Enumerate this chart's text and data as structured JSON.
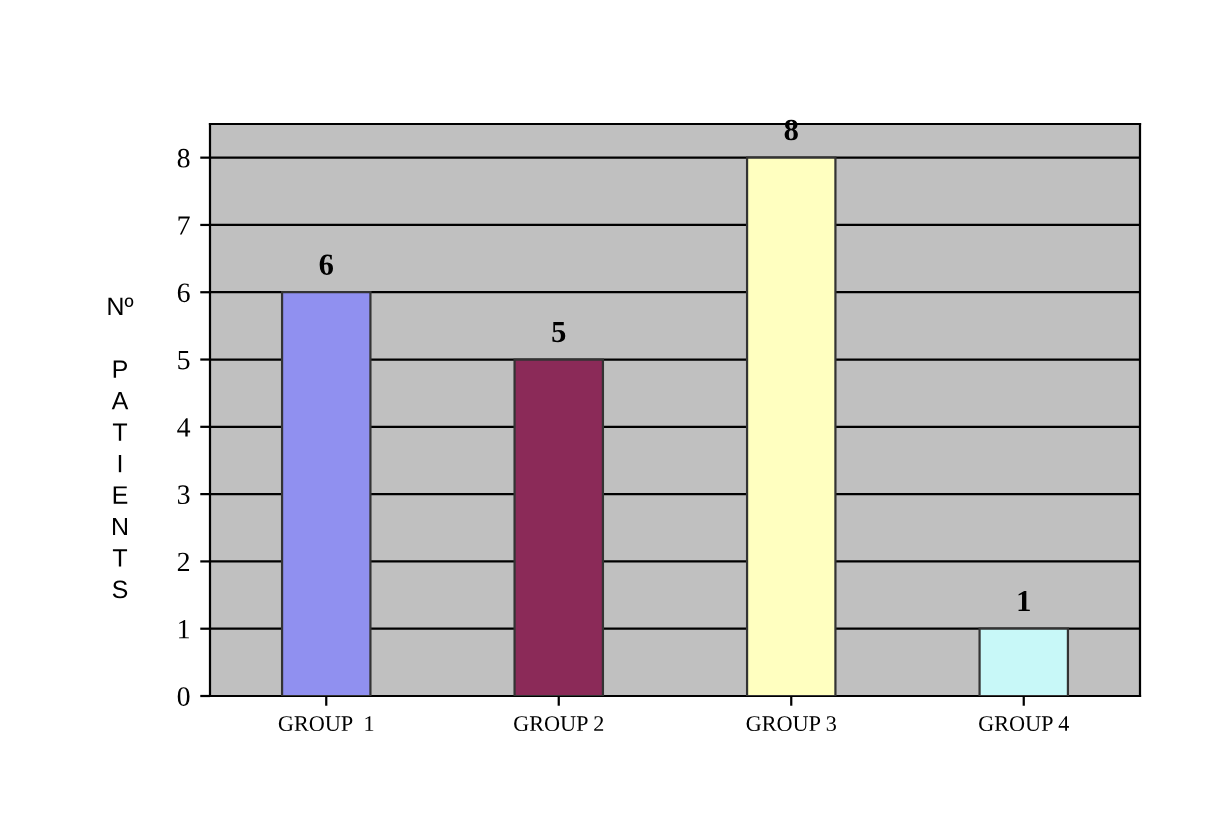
{
  "chart_data": {
    "type": "bar",
    "ylabel": "Nº PATIENTS",
    "categories": [
      "GROUP  1",
      "GROUP 2",
      "GROUP 3",
      "GROUP 4"
    ],
    "values": [
      6,
      5,
      8,
      1
    ],
    "colors": [
      "#9090f0",
      "#8b2a58",
      "#ffffc0",
      "#c8f8f8"
    ],
    "ylim": [
      0,
      8.5
    ],
    "yticks": [
      0,
      1,
      2,
      3,
      4,
      5,
      6,
      7,
      8
    ],
    "grid": "y",
    "data_labels": true
  }
}
